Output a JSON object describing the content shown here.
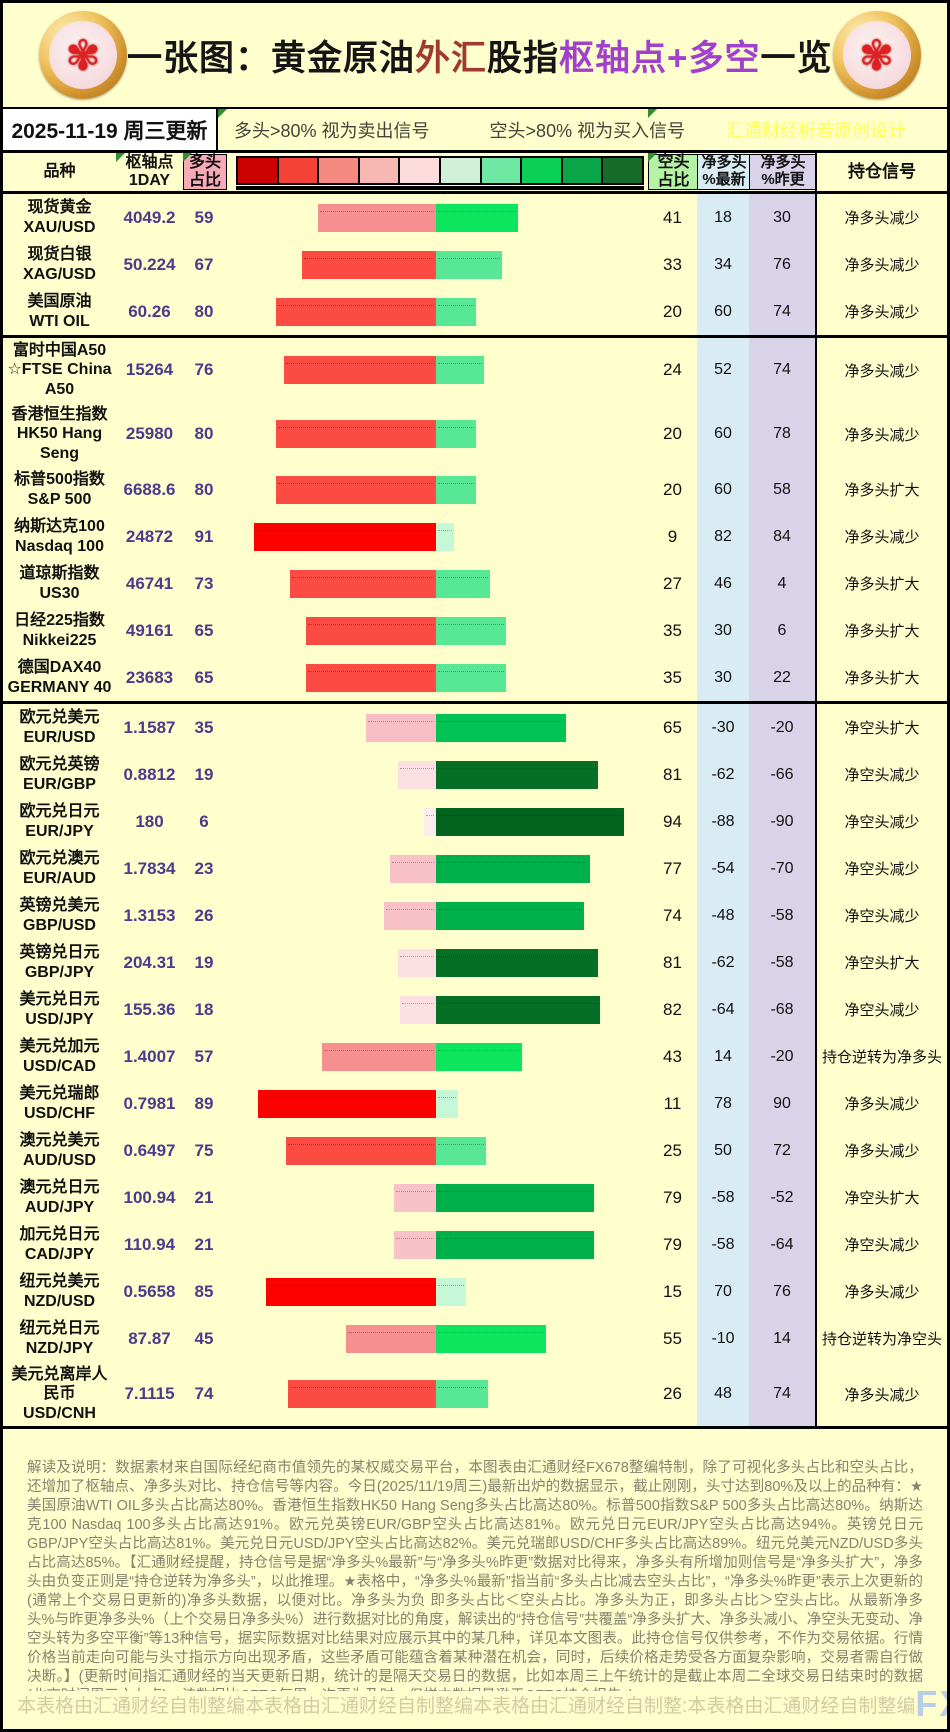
{
  "title": {
    "segments": [
      {
        "text": "一张图：黄金原油",
        "color": "#151515"
      },
      {
        "text": "外汇",
        "color": "#a03a30"
      },
      {
        "text": "股指",
        "color": "#151515"
      },
      {
        "text": "枢轴点+多空",
        "color": "#a040cc"
      },
      {
        "text": "一览",
        "color": "#151515"
      }
    ]
  },
  "date_row": {
    "date": "2025-11-19 周三更新",
    "long_rule": "多头>80% 视为卖出信号",
    "short_rule": "空头>80% 视为买入信号",
    "credit": "汇通财经析若原创设计"
  },
  "columns": {
    "product": "品种",
    "pivot_line1": "枢轴点",
    "pivot_line2": "1DAY",
    "long_line1": "多头",
    "long_line2": "占比",
    "short_line1": "空头",
    "short_line2": "占比",
    "net_latest_line1": "净多头",
    "net_latest_line2": "%最新",
    "net_prev_line1": "净多头",
    "net_prev_line2": "%昨更",
    "signal": "持仓信号"
  },
  "legend_colors": [
    "#cc0000",
    "#f44336",
    "#f48a80",
    "#f6b8b0",
    "#fbdcda",
    "#d2f0d8",
    "#6ee8a2",
    "#0ad155",
    "#0aa449",
    "#156b28"
  ],
  "rows": [
    {
      "labels": [
        "现货黄金",
        "XAU/USD"
      ],
      "pivot": "4049.2",
      "long": 59,
      "short": 41,
      "net_latest": "18",
      "net_prev": "30",
      "signal": "净多头减少",
      "divider_after": false
    },
    {
      "labels": [
        "现货白银",
        "XAG/USD"
      ],
      "pivot": "50.224",
      "long": 67,
      "short": 33,
      "net_latest": "34",
      "net_prev": "76",
      "signal": "净多头减少",
      "divider_after": false
    },
    {
      "labels": [
        "美国原油",
        "WTI OIL"
      ],
      "pivot": "60.26",
      "long": 80,
      "short": 20,
      "net_latest": "60",
      "net_prev": "74",
      "signal": "净多头减少",
      "divider_after": true
    },
    {
      "labels": [
        "富时中国A50",
        "☆FTSE China",
        "A50"
      ],
      "pivot": "15264",
      "long": 76,
      "short": 24,
      "net_latest": "52",
      "net_prev": "74",
      "signal": "净多头减少",
      "divider_after": false
    },
    {
      "labels": [
        "香港恒生指数",
        "HK50 Hang",
        "Seng"
      ],
      "pivot": "25980",
      "long": 80,
      "short": 20,
      "net_latest": "60",
      "net_prev": "78",
      "signal": "净多头减少",
      "divider_after": false
    },
    {
      "labels": [
        "标普500指数",
        "S&P 500"
      ],
      "pivot": "6688.6",
      "long": 80,
      "short": 20,
      "net_latest": "60",
      "net_prev": "58",
      "signal": "净多头扩大",
      "divider_after": false
    },
    {
      "labels": [
        "纳斯达克100",
        "Nasdaq 100"
      ],
      "pivot": "24872",
      "long": 91,
      "short": 9,
      "net_latest": "82",
      "net_prev": "84",
      "signal": "净多头减少",
      "divider_after": false
    },
    {
      "labels": [
        "道琼斯指数",
        "US30"
      ],
      "pivot": "46741",
      "long": 73,
      "short": 27,
      "net_latest": "46",
      "net_prev": "4",
      "signal": "净多头扩大",
      "divider_after": false
    },
    {
      "labels": [
        "日经225指数",
        "Nikkei225"
      ],
      "pivot": "49161",
      "long": 65,
      "short": 35,
      "net_latest": "30",
      "net_prev": "6",
      "signal": "净多头扩大",
      "divider_after": false
    },
    {
      "labels": [
        "德国DAX40",
        "GERMANY 40"
      ],
      "pivot": "23683",
      "long": 65,
      "short": 35,
      "net_latest": "30",
      "net_prev": "22",
      "signal": "净多头扩大",
      "divider_after": true
    },
    {
      "labels": [
        "欧元兑美元",
        "EUR/USD"
      ],
      "pivot": "1.1587",
      "long": 35,
      "short": 65,
      "net_latest": "-30",
      "net_prev": "-20",
      "signal": "净空头扩大",
      "divider_after": false
    },
    {
      "labels": [
        "欧元兑英镑",
        "EUR/GBP"
      ],
      "pivot": "0.8812",
      "long": 19,
      "short": 81,
      "net_latest": "-62",
      "net_prev": "-66",
      "signal": "净空头减少",
      "divider_after": false
    },
    {
      "labels": [
        "欧元兑日元",
        "EUR/JPY"
      ],
      "pivot": "180",
      "long": 6,
      "short": 94,
      "net_latest": "-88",
      "net_prev": "-90",
      "signal": "净空头减少",
      "divider_after": false
    },
    {
      "labels": [
        "欧元兑澳元",
        "EUR/AUD"
      ],
      "pivot": "1.7834",
      "long": 23,
      "short": 77,
      "net_latest": "-54",
      "net_prev": "-70",
      "signal": "净空头减少",
      "divider_after": false
    },
    {
      "labels": [
        "英镑兑美元",
        "GBP/USD"
      ],
      "pivot": "1.3153",
      "long": 26,
      "short": 74,
      "net_latest": "-48",
      "net_prev": "-58",
      "signal": "净空头减少",
      "divider_after": false
    },
    {
      "labels": [
        "英镑兑日元",
        "GBP/JPY"
      ],
      "pivot": "204.31",
      "long": 19,
      "short": 81,
      "net_latest": "-62",
      "net_prev": "-58",
      "signal": "净空头扩大",
      "divider_after": false
    },
    {
      "labels": [
        "美元兑日元",
        "USD/JPY"
      ],
      "pivot": "155.36",
      "long": 18,
      "short": 82,
      "net_latest": "-64",
      "net_prev": "-68",
      "signal": "净空头减少",
      "divider_after": false
    },
    {
      "labels": [
        "美元兑加元",
        "USD/CAD"
      ],
      "pivot": "1.4007",
      "long": 57,
      "short": 43,
      "net_latest": "14",
      "net_prev": "-20",
      "signal": "持仓逆转为净多头",
      "divider_after": false
    },
    {
      "labels": [
        "美元兑瑞郎",
        "USD/CHF"
      ],
      "pivot": "0.7981",
      "long": 89,
      "short": 11,
      "net_latest": "78",
      "net_prev": "90",
      "signal": "净多头减少",
      "divider_after": false
    },
    {
      "labels": [
        "澳元兑美元",
        "AUD/USD"
      ],
      "pivot": "0.6497",
      "long": 75,
      "short": 25,
      "net_latest": "50",
      "net_prev": "72",
      "signal": "净多头减少",
      "divider_after": false
    },
    {
      "labels": [
        "澳元兑日元",
        "AUD/JPY"
      ],
      "pivot": "100.94",
      "long": 21,
      "short": 79,
      "net_latest": "-58",
      "net_prev": "-52",
      "signal": "净空头扩大",
      "divider_after": false
    },
    {
      "labels": [
        "加元兑日元",
        "CAD/JPY"
      ],
      "pivot": "110.94",
      "long": 21,
      "short": 79,
      "net_latest": "-58",
      "net_prev": "-64",
      "signal": "净空头减少",
      "divider_after": false
    },
    {
      "labels": [
        "纽元兑美元",
        "NZD/USD"
      ],
      "pivot": "0.5658",
      "long": 85,
      "short": 15,
      "net_latest": "70",
      "net_prev": "76",
      "signal": "净多头减少",
      "divider_after": false
    },
    {
      "labels": [
        "纽元兑日元",
        "NZD/JPY"
      ],
      "pivot": "87.87",
      "long": 45,
      "short": 55,
      "net_latest": "-10",
      "net_prev": "14",
      "signal": "持仓逆转为净空头",
      "divider_after": false
    },
    {
      "labels": [
        "美元兑离岸人",
        "民币",
        "USD/CNH"
      ],
      "pivot": "7.1115",
      "long": 74,
      "short": 26,
      "net_latest": "48",
      "net_prev": "74",
      "signal": "净多头减少",
      "divider_after": false
    }
  ],
  "footer_text": "解读及说明：数据素材来自国际经纪商市值领先的某权威交易平台，本图表由汇通财经FX678整编特制，除了可视化多头占比和空头占比，还增加了枢轴点、净多头对比、持仓信号等内容。今日(2025/11/19周三)最新出炉的数据显示，截止刚刚，头寸达到80%及以上的品种有：★ 美国原油WTI OIL多头占比高达80%。香港恒生指数HK50 Hang Seng多头占比高达80%。标普500指数S&P 500多头占比高达80%。纳斯达克100 Nasdaq 100多头占比高达91%。欧元兑英镑EUR/GBP空头占比高达81%。欧元兑日元EUR/JPY空头占比高达94%。英镑兑日元GBP/JPY空头占比高达81%。美元兑日元USD/JPY空头占比高达82%。美元兑瑞郎USD/CHF多头占比高达89%。纽元兑美元NZD/USD多头占比高达85%。【汇通财经提醒，持仓信号是据“净多头%最新”与“净多头%昨更”数据对比得来，净多头有所增加则信号是“净多头扩大”，净多头由负变正则是“持仓逆转为净多头”，以此推理。★表格中，“净多头%最新”指当前“多头占比减去空头占比”，“净多头%昨更”表示上次更新的(通常上个交易日更新的)净多头数据，以便对比。净多头为负 即多头占比＜空头占比。净多头为正，即多头占比＞空头占比。从最新净多头%与昨更净多头%（上个交易日净多头%）进行数据对比的角度，解读出的“持仓信号”共覆盖“净多头扩大、净多头减小、净空头无变动、净空头转为多空平衡”等13种信号，据实际数据对比结果对应展示其中的某几种，详见本文图表。此持仓信号仅供参考，不作为交易依据。行情价格当前走向可能与头寸指示方向出现矛盾，这些矛盾可能蕴含着某种潜在机会，同时，后续价格走势受各方面复杂影响，交易者需自行做决断。】(更新时间指汇通财经的当天更新日期，统计的是隔天交易日的数据，比如本周三上午统计的是截止本周二全球交易日结束时的数据(北京时间周三六七点)。该数据比CFTC每周一次更为及时，但样本数据量逊于CFTC持仓报告。)",
  "bottom": {
    "watermarks": [
      "本表格由汇通财经自制整编",
      "本表格由汇通财经自制整编",
      "本表格由汇通财经自制整:",
      "本表格由汇通财经自制整编"
    ],
    "logo": "FX678"
  },
  "chart_data": {
    "type": "bar",
    "orientation": "horizontal-diverging",
    "title": "一张图：黄金原油外汇股指枢轴点+多空一览",
    "update": "2025-11-19 周三更新",
    "categories": [
      "XAU/USD",
      "XAG/USD",
      "WTI OIL",
      "FTSE China A50",
      "HK50 Hang Seng",
      "S&P 500",
      "Nasdaq 100",
      "US30",
      "Nikkei225",
      "GERMANY 40",
      "EUR/USD",
      "EUR/GBP",
      "EUR/JPY",
      "EUR/AUD",
      "GBP/USD",
      "GBP/JPY",
      "USD/JPY",
      "USD/CAD",
      "USD/CHF",
      "AUD/USD",
      "AUD/JPY",
      "CAD/JPY",
      "NZD/USD",
      "NZD/JPY",
      "USD/CNH"
    ],
    "series": [
      {
        "name": "枢轴点1DAY",
        "values": [
          4049.2,
          50.224,
          60.26,
          15264,
          25980,
          6688.6,
          24872,
          46741,
          49161,
          23683,
          1.1587,
          0.8812,
          180,
          1.7834,
          1.3153,
          204.31,
          155.36,
          1.4007,
          0.7981,
          0.6497,
          100.94,
          110.94,
          0.5658,
          87.87,
          7.1115
        ]
      },
      {
        "name": "多头占比",
        "values": [
          59,
          67,
          80,
          76,
          80,
          80,
          91,
          73,
          65,
          65,
          35,
          19,
          6,
          23,
          26,
          19,
          18,
          57,
          89,
          75,
          21,
          21,
          85,
          45,
          74
        ]
      },
      {
        "name": "空头占比",
        "values": [
          41,
          33,
          20,
          24,
          20,
          20,
          9,
          27,
          35,
          35,
          65,
          81,
          94,
          77,
          74,
          81,
          82,
          43,
          11,
          25,
          79,
          79,
          15,
          55,
          26
        ]
      },
      {
        "name": "净多头%最新",
        "values": [
          18,
          34,
          60,
          52,
          60,
          60,
          82,
          46,
          30,
          30,
          -30,
          -62,
          -88,
          -54,
          -48,
          -62,
          -64,
          14,
          78,
          50,
          -58,
          -58,
          70,
          -10,
          48
        ]
      },
      {
        "name": "净多头%昨更",
        "values": [
          30,
          76,
          74,
          74,
          78,
          58,
          84,
          4,
          6,
          22,
          -20,
          -66,
          -90,
          -70,
          -58,
          -58,
          -68,
          -20,
          90,
          72,
          -52,
          -64,
          76,
          14,
          74
        ]
      }
    ],
    "signals": [
      "净多头减少",
      "净多头减少",
      "净多头减少",
      "净多头减少",
      "净多头减少",
      "净多头扩大",
      "净多头减少",
      "净多头扩大",
      "净多头扩大",
      "净多头扩大",
      "净空头扩大",
      "净空头减少",
      "净空头减少",
      "净空头减少",
      "净空头减少",
      "净空头扩大",
      "净空头减少",
      "持仓逆转为净多头",
      "净多头减少",
      "净多头减少",
      "净空头扩大",
      "净空头减少",
      "净多头减少",
      "持仓逆转为净空头",
      "净多头减少"
    ],
    "xlim": [
      -100,
      100
    ],
    "legend_note": [
      "多头>80% 视为卖出信号",
      "空头>80% 视为买入信号"
    ]
  }
}
